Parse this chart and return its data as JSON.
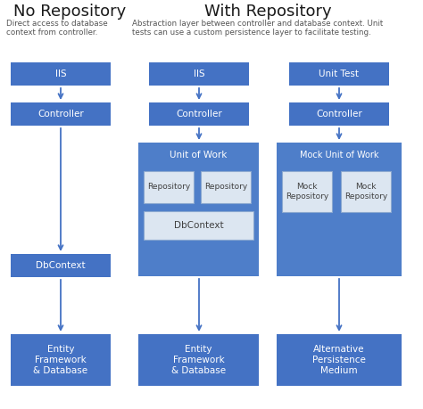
{
  "bg_color": "#ffffff",
  "box_blue": "#4472c4",
  "box_blue_mid": "#4e7ec9",
  "light_box": "#dce6f1",
  "text_white": "#ffffff",
  "text_dark": "#404040",
  "arrow_color": "#4472c4",
  "title_color": "#1a1a1a",
  "subtitle_color": "#555555",
  "title1": "No Repository",
  "title2": "With Repository",
  "subtitle1": "Direct access to database\ncontext from controller.",
  "subtitle2": "Abstraction layer between controller and database context. Unit\ntests can use a custom persistence layer to facilitate testing.",
  "figsize": [
    4.74,
    4.59
  ],
  "dpi": 100
}
